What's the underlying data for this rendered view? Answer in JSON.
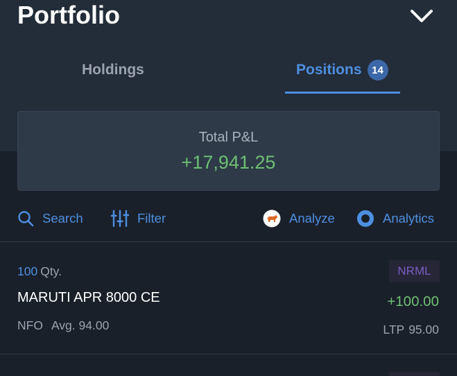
{
  "header": {
    "title": "Portfolio"
  },
  "tabs": [
    {
      "label": "Holdings",
      "active": false
    },
    {
      "label": "Positions",
      "active": true,
      "badge": "14"
    }
  ],
  "pnl": {
    "label": "Total P&L",
    "value": "+17,941.25"
  },
  "toolbar": {
    "search_label": "Search",
    "filter_label": "Filter",
    "analyze_label": "Analyze",
    "analytics_label": "Analytics"
  },
  "positions": [
    {
      "qty": "100",
      "qty_unit": "Qty.",
      "product": "NRML",
      "symbol": "MARUTI APR 8000 CE",
      "pl": "+100.00",
      "exchange": "NFO",
      "avg_label": "Avg.",
      "avg": "94.00",
      "ltp_label": "LTP",
      "ltp": "95.00"
    }
  ],
  "colors": {
    "accent": "#4d8fe0",
    "profit": "#6dbf73",
    "product_badge": "#7a5cc4",
    "background": "#1a202a",
    "header_band": "#232c39"
  },
  "icons": {
    "collapse": "chevron-down-icon",
    "search": "search-icon",
    "filter": "filter-sliders-icon",
    "analyze": "bull-icon",
    "analytics": "ring-icon"
  }
}
